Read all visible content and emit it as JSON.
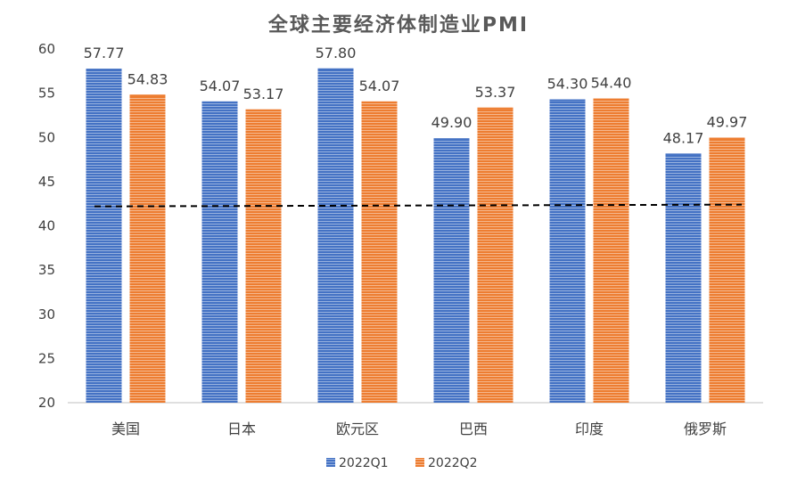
{
  "chart_data": {
    "type": "bar",
    "title": "全球主要经济体制造业PMI",
    "categories": [
      "美国",
      "日本",
      "欧元区",
      "巴西",
      "印度",
      "俄罗斯"
    ],
    "series": [
      {
        "name": "2022Q1",
        "color": "#4472C4",
        "values": [
          57.77,
          54.07,
          57.8,
          49.9,
          54.3,
          48.17
        ],
        "labels": [
          "57.77",
          "54.07",
          "57.80",
          "49.90",
          "54.30",
          "48.17"
        ]
      },
      {
        "name": "2022Q2",
        "color": "#ED7D31",
        "values": [
          54.83,
          53.17,
          54.07,
          53.37,
          54.4,
          49.97
        ],
        "labels": [
          "54.83",
          "53.17",
          "54.07",
          "53.37",
          "54.40",
          "49.97"
        ]
      }
    ],
    "reference_line": {
      "style": "dashed",
      "color": "#000000",
      "from_value": 42.2,
      "to_value": 42.4
    },
    "ylim": [
      20,
      60
    ],
    "yticks": [
      "20",
      "25",
      "30",
      "35",
      "40",
      "45",
      "50",
      "55",
      "60"
    ],
    "ytick_values": [
      20,
      25,
      30,
      35,
      40,
      45,
      50,
      55,
      60
    ],
    "grid": false,
    "legend_position": "bottom",
    "bar_fill": "horizontal-stripes"
  }
}
